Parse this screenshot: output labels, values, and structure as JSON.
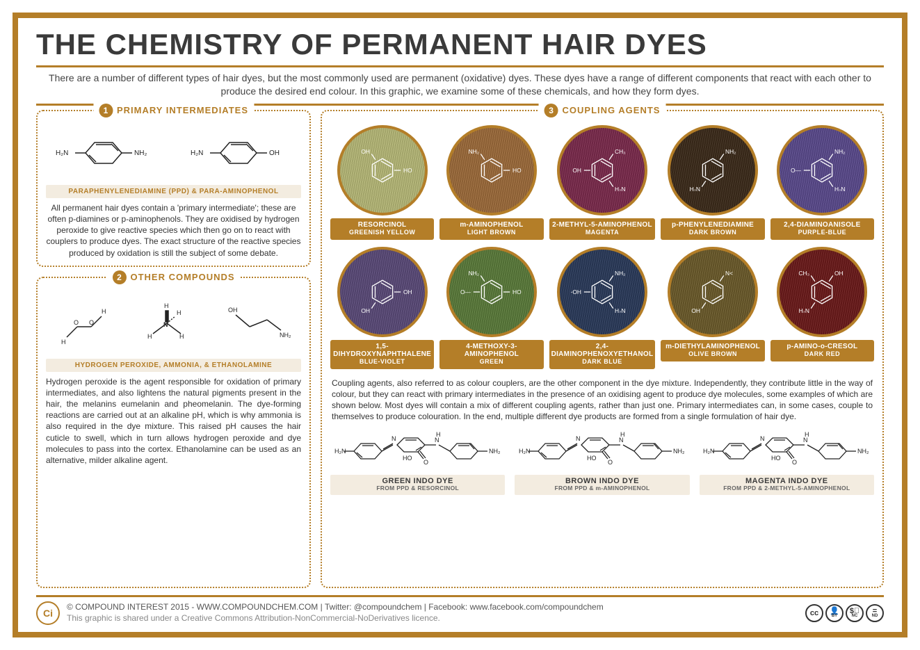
{
  "title": "THE CHEMISTRY OF PERMANENT HAIR DYES",
  "intro": "There are a number of different types of hair dyes, but the most commonly used are permanent (oxidative) dyes. These dyes have a range of different components that react with each other to produce the desired end colour. In this graphic, we examine some of these chemicals, and how they form dyes.",
  "accent_color": "#b47e28",
  "box1": {
    "num": "1",
    "title": "PRIMARY INTERMEDIATES",
    "mol_label": "PARAPHENYLENEDIAMINE (PPD) & PARA-AMINOPHENOL",
    "text": "All permanent hair dyes contain a 'primary intermediate'; these are often p-diamines or p-aminophenols. They are oxidised by hydrogen peroxide to give reactive species which then go on to react with couplers to produce dyes. The exact structure of the reactive species produced by oxidation is still the subject of some debate."
  },
  "box2": {
    "num": "2",
    "title": "OTHER COMPOUNDS",
    "mol_label": "HYDROGEN PEROXIDE, AMMONIA, & ETHANOLAMINE",
    "text": "Hydrogen peroxide is the agent responsible for oxidation of primary intermediates, and also lightens the natural pigments present in the hair, the melanins eumelanin and pheomelanin. The dye-forming reactions are carried out at an alkaline pH, which is why ammonia is also required in the dye mixture. This raised pH causes the hair cuticle to swell, which in turn allows hydrogen peroxide and dye molecules to pass into the cortex. Ethanolamine can be used as an alternative, milder alkaline agent."
  },
  "box3": {
    "num": "3",
    "title": "COUPLING AGENTS",
    "text": "Coupling agents, also referred to as colour couplers, are the other component in the dye mixture. Independently, they contribute little in the way of colour, but they can react with primary intermediates in the presence of an oxidising agent to produce dye molecules, some examples of which are shown below. Most dyes will contain a mix of different coupling agents, rather than just one. Primary intermediates can, in some cases, couple to themselves to produce colouration. In the end, multiple different dye products are formed from a single formulation of hair dye."
  },
  "swatches": [
    {
      "name": "RESORCINOL",
      "color_name": "GREENISH YELLOW",
      "bg": "#b6b877",
      "subst": [
        "HO",
        "",
        "OH",
        "",
        "",
        ""
      ]
    },
    {
      "name": "m-AMINOPHENOL",
      "color_name": "LIGHT BROWN",
      "bg": "#9c6a3a",
      "subst": [
        "HO",
        "",
        "NH₂",
        "",
        "",
        ""
      ]
    },
    {
      "name": "2-METHYL-5-AMINOPHENOL",
      "color_name": "MAGENTA",
      "bg": "#7a2a4c",
      "subst": [
        "",
        "CH₃",
        "",
        "OH",
        "",
        "H₂N"
      ]
    },
    {
      "name": "p-PHENYLENEDIAMINE",
      "color_name": "DARK BROWN",
      "bg": "#3b2a1a",
      "subst": [
        "",
        "NH₂",
        "",
        "",
        "H₂N",
        ""
      ]
    },
    {
      "name": "2,4-DIAMINOANISOLE",
      "color_name": "PURPLE-BLUE",
      "bg": "#5a4a8c",
      "subst": [
        "",
        "NH₂",
        "",
        "O—",
        "",
        "H₂N"
      ]
    },
    {
      "name": "1,5-DIHYDROXYNAPHTHALENE",
      "color_name": "BLUE-VIOLET",
      "bg": "#5a4a78",
      "subst": [
        "OH",
        "",
        "",
        "",
        "OH",
        ""
      ]
    },
    {
      "name": "4-METHOXY-3-AMINOPHENOL",
      "color_name": "GREEN",
      "bg": "#5a7a3a",
      "subst": [
        "HO",
        "",
        "NH₂",
        "O—",
        "",
        ""
      ]
    },
    {
      "name": "2,4-DIAMINOPHENOXYETHANOL",
      "color_name": "DARK BLUE",
      "bg": "#2a3a5a",
      "subst": [
        "",
        "NH₂",
        "",
        "O~OH",
        "",
        "H₂N"
      ]
    },
    {
      "name": "m-DIETHYLAMINOPHENOL",
      "color_name": "OLIVE BROWN",
      "bg": "#6a5a2a",
      "subst": [
        "",
        "N<",
        "",
        "",
        "OH",
        ""
      ]
    },
    {
      "name": "p-AMINO-o-CRESOL",
      "color_name": "DARK RED",
      "bg": "#6a1a1a",
      "subst": [
        "",
        "OH",
        "CH₃",
        "",
        "H₂N",
        ""
      ]
    }
  ],
  "dyes": [
    {
      "name": "GREEN INDO DYE",
      "from": "FROM PPD & RESORCINOL"
    },
    {
      "name": "BROWN INDO DYE",
      "from": "FROM PPD & m-AMINOPHENOL"
    },
    {
      "name": "MAGENTA INDO DYE",
      "from": "FROM PPD & 2-METHYL-5-AMINOPHENOL"
    }
  ],
  "footer": {
    "line1": "© COMPOUND INTEREST 2015 - WWW.COMPOUNDCHEM.COM | Twitter: @compoundchem | Facebook: www.facebook.com/compoundchem",
    "line2": "This graphic is shared under a Creative Commons Attribution-NonCommercial-NoDerivatives licence.",
    "cc": [
      "cc",
      "BY",
      "NC",
      "ND"
    ]
  }
}
